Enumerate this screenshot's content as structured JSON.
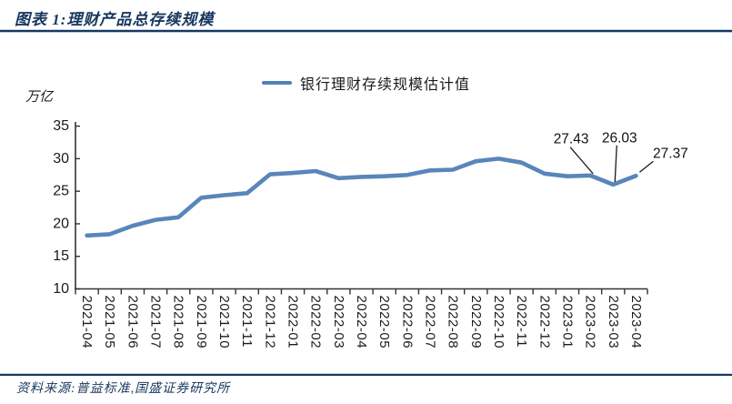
{
  "header": {
    "title": "图表 1:理财产品总存续规模"
  },
  "legend": {
    "label": "银行理财存续规模估计值",
    "swatch_color": "#5080B6"
  },
  "footer": {
    "source": "资料来源:普益标准,国盛证券研究所"
  },
  "colors": {
    "navy": "#17375E",
    "series": "#5080B6",
    "axis": "#333333",
    "tick_text": "#1a1a1a"
  },
  "chart_data": {
    "type": "line",
    "title": "理财产品总存续规模",
    "unit_label": "万亿",
    "xlabel": "",
    "ylabel": "万亿",
    "ylim": [
      10,
      35
    ],
    "yticks": [
      10,
      15,
      20,
      25,
      30,
      35
    ],
    "grid": false,
    "legend_position": "top-center",
    "categories": [
      "2021-04",
      "2021-05",
      "2021-06",
      "2021-07",
      "2021-08",
      "2021-09",
      "2021-10",
      "2021-11",
      "2021-12",
      "2022-01",
      "2022-02",
      "2022-03",
      "2022-04",
      "2022-05",
      "2022-06",
      "2022-07",
      "2022-08",
      "2022-09",
      "2022-10",
      "2022-11",
      "2022-12",
      "2023-01",
      "2023-02",
      "2023-03",
      "2023-04"
    ],
    "series": [
      {
        "name": "银行理财存续规模估计值",
        "color": "#5080B6",
        "values": [
          18.2,
          18.4,
          19.7,
          20.6,
          21.0,
          24.0,
          24.4,
          24.7,
          27.6,
          27.8,
          28.1,
          27.0,
          27.2,
          27.3,
          27.5,
          28.2,
          28.3,
          29.6,
          30.0,
          29.4,
          27.7,
          27.3,
          27.43,
          26.03,
          27.37
        ]
      }
    ],
    "annotations": [
      {
        "category": "2023-02",
        "label": "27.43"
      },
      {
        "category": "2023-03",
        "label": "26.03"
      },
      {
        "category": "2023-04",
        "label": "27.37"
      }
    ]
  }
}
